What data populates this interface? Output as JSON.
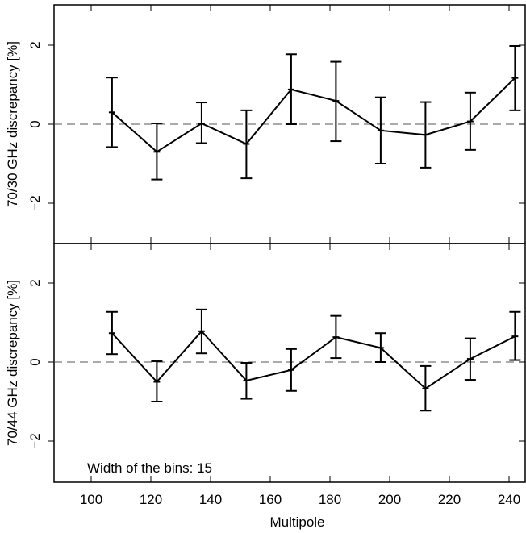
{
  "chart_data": [
    {
      "type": "line",
      "ylabel": "70/30 GHz discrepancy [%]",
      "xlim": [
        95,
        250
      ],
      "ylim": [
        -3,
        3
      ],
      "yticks": [
        -2,
        0,
        2
      ],
      "ytick_labels": [
        "−2",
        "0",
        "2"
      ],
      "reference_line": 0,
      "x": [
        107,
        122,
        137,
        152,
        167,
        182,
        197,
        212,
        227,
        242
      ],
      "series": [
        {
          "values": [
            0.3,
            -0.7,
            0.02,
            -0.5,
            0.88,
            0.59,
            -0.16,
            -0.27,
            0.07,
            1.17
          ],
          "err_low": [
            -0.58,
            -1.4,
            -0.48,
            -1.37,
            0.0,
            -0.43,
            -1.0,
            -1.1,
            -0.65,
            0.35
          ],
          "err_high": [
            1.18,
            0.02,
            0.55,
            0.35,
            1.77,
            1.58,
            0.68,
            0.56,
            0.8,
            1.98
          ]
        }
      ]
    },
    {
      "type": "line",
      "xlabel": "Multipole",
      "ylabel": "70/44 GHz discrepancy [%]",
      "xlim": [
        95,
        250
      ],
      "ylim": [
        -3,
        3
      ],
      "xticks": [
        100,
        120,
        140,
        160,
        180,
        200,
        220,
        240
      ],
      "yticks": [
        -2,
        0,
        2
      ],
      "ytick_labels": [
        "−2",
        "0",
        "2"
      ],
      "reference_line": 0,
      "annotation": "Width of the bins: 15",
      "x": [
        107,
        122,
        137,
        152,
        167,
        182,
        197,
        212,
        227,
        242
      ],
      "series": [
        {
          "values": [
            0.73,
            -0.5,
            0.78,
            -0.47,
            -0.2,
            0.63,
            0.36,
            -0.67,
            0.08,
            0.65
          ],
          "err_low": [
            0.2,
            -1.0,
            0.22,
            -0.93,
            -0.73,
            0.1,
            0.0,
            -1.23,
            -0.45,
            0.05
          ],
          "err_high": [
            1.27,
            0.02,
            1.33,
            -0.02,
            0.33,
            1.17,
            0.73,
            -0.1,
            0.6,
            1.27
          ]
        }
      ]
    }
  ]
}
